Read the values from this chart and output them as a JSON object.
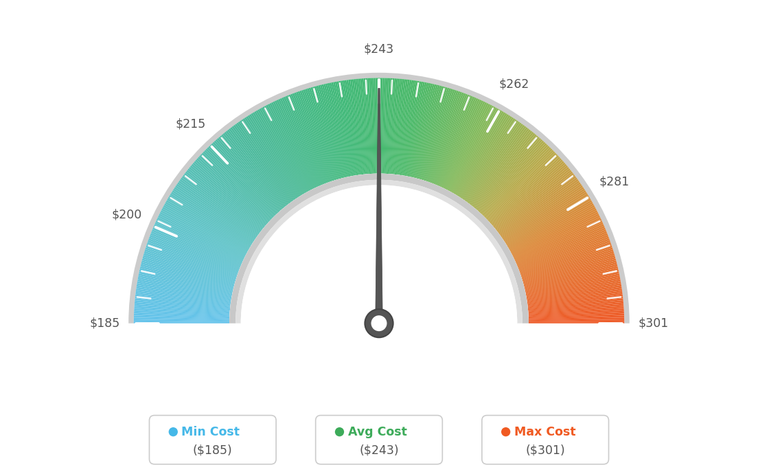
{
  "min_val": 185,
  "max_val": 301,
  "avg_val": 243,
  "tick_labels": [
    "$185",
    "$200",
    "$215",
    "$243",
    "$262",
    "$281",
    "$301"
  ],
  "tick_values": [
    185,
    200,
    215,
    243,
    262,
    281,
    301
  ],
  "legend_items": [
    {
      "label": "Min Cost",
      "sublabel": "($185)",
      "color": "#45b8e8"
    },
    {
      "label": "Avg Cost",
      "sublabel": "($243)",
      "color": "#3dab5a"
    },
    {
      "label": "Max Cost",
      "sublabel": "($301)",
      "color": "#f05a22"
    }
  ],
  "needle_value": 243,
  "background_color": "#ffffff",
  "color_stops": [
    [
      0.0,
      [
        100,
        195,
        235
      ]
    ],
    [
      0.15,
      [
        95,
        195,
        200
      ]
    ],
    [
      0.3,
      [
        75,
        185,
        155
      ]
    ],
    [
      0.45,
      [
        65,
        185,
        120
      ]
    ],
    [
      0.55,
      [
        75,
        185,
        105
      ]
    ],
    [
      0.65,
      [
        130,
        185,
        90
      ]
    ],
    [
      0.75,
      [
        185,
        170,
        75
      ]
    ],
    [
      0.85,
      [
        220,
        135,
        55
      ]
    ],
    [
      1.0,
      [
        238,
        90,
        40
      ]
    ]
  ]
}
